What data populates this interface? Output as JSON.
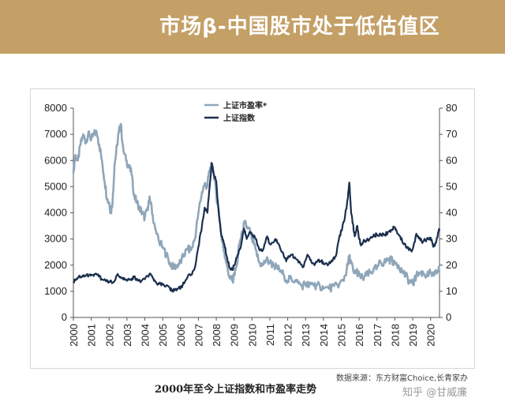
{
  "header": {
    "title": "市场β-中国股市处于低估值区",
    "band_color": "#c4a067"
  },
  "caption": "2000年至今上证指数和市盈率走势",
  "source": "数据来源：东方财富Choice,长青家办",
  "watermark": "知乎 @甘威廉",
  "chart_data": {
    "type": "line",
    "title": "",
    "x_ticks": [
      "2000",
      "2001",
      "2002",
      "2003",
      "2004",
      "2005",
      "2006",
      "2007",
      "2008",
      "2009",
      "2010",
      "2011",
      "2012",
      "2013",
      "2014",
      "2015",
      "2016",
      "2017",
      "2018",
      "2019",
      "2020"
    ],
    "xlim": [
      2000,
      2020.5
    ],
    "y_left": {
      "ticks": [
        0,
        1000,
        2000,
        3000,
        4000,
        5000,
        6000,
        7000,
        8000
      ],
      "lim": [
        0,
        8000
      ]
    },
    "y_right": {
      "ticks": [
        0,
        10,
        20,
        30,
        40,
        50,
        60,
        70,
        80
      ],
      "lim": [
        0,
        80
      ]
    },
    "legend_position": "top-left",
    "grid": false,
    "series": [
      {
        "name": "上证市盈率*",
        "axis": "right",
        "color": "#8fa6b9",
        "points": [
          [
            2000.0,
            55
          ],
          [
            2000.1,
            62
          ],
          [
            2000.25,
            60
          ],
          [
            2000.4,
            66
          ],
          [
            2000.55,
            70
          ],
          [
            2000.7,
            67
          ],
          [
            2000.85,
            71
          ],
          [
            2001.0,
            68
          ],
          [
            2001.15,
            70
          ],
          [
            2001.3,
            71
          ],
          [
            2001.45,
            66
          ],
          [
            2001.6,
            60
          ],
          [
            2001.75,
            52
          ],
          [
            2001.9,
            45
          ],
          [
            2002.0,
            44
          ],
          [
            2002.1,
            40
          ],
          [
            2002.2,
            45
          ],
          [
            2002.3,
            58
          ],
          [
            2002.45,
            66
          ],
          [
            2002.55,
            71
          ],
          [
            2002.65,
            74
          ],
          [
            2002.8,
            64
          ],
          [
            2002.95,
            60
          ],
          [
            2003.1,
            58
          ],
          [
            2003.25,
            55
          ],
          [
            2003.4,
            47
          ],
          [
            2003.55,
            44
          ],
          [
            2003.7,
            42
          ],
          [
            2003.85,
            40
          ],
          [
            2004.0,
            38
          ],
          [
            2004.15,
            42
          ],
          [
            2004.25,
            45
          ],
          [
            2004.35,
            44
          ],
          [
            2004.5,
            36
          ],
          [
            2004.65,
            32
          ],
          [
            2004.8,
            29
          ],
          [
            2005.0,
            27
          ],
          [
            2005.2,
            24
          ],
          [
            2005.4,
            21
          ],
          [
            2005.6,
            19
          ],
          [
            2005.8,
            20
          ],
          [
            2006.0,
            21
          ],
          [
            2006.2,
            24
          ],
          [
            2006.4,
            26
          ],
          [
            2006.6,
            26
          ],
          [
            2006.8,
            30
          ],
          [
            2007.0,
            40
          ],
          [
            2007.2,
            48
          ],
          [
            2007.35,
            51
          ],
          [
            2007.5,
            50
          ],
          [
            2007.6,
            56
          ],
          [
            2007.75,
            58
          ],
          [
            2007.85,
            56
          ],
          [
            2008.0,
            47
          ],
          [
            2008.15,
            40
          ],
          [
            2008.3,
            30
          ],
          [
            2008.45,
            25
          ],
          [
            2008.6,
            20
          ],
          [
            2008.75,
            15
          ],
          [
            2008.9,
            14
          ],
          [
            2009.0,
            16
          ],
          [
            2009.15,
            20
          ],
          [
            2009.3,
            28
          ],
          [
            2009.45,
            33
          ],
          [
            2009.6,
            36
          ],
          [
            2009.75,
            34
          ],
          [
            2009.9,
            33
          ],
          [
            2010.0,
            30
          ],
          [
            2010.2,
            26
          ],
          [
            2010.4,
            21
          ],
          [
            2010.6,
            20
          ],
          [
            2010.8,
            22
          ],
          [
            2011.0,
            21
          ],
          [
            2011.2,
            20
          ],
          [
            2011.4,
            19
          ],
          [
            2011.6,
            18
          ],
          [
            2011.8,
            16
          ],
          [
            2012.0,
            14
          ],
          [
            2012.2,
            15
          ],
          [
            2012.4,
            14
          ],
          [
            2012.6,
            13
          ],
          [
            2012.8,
            12
          ],
          [
            2013.0,
            13
          ],
          [
            2013.2,
            12
          ],
          [
            2013.4,
            13
          ],
          [
            2013.6,
            12
          ],
          [
            2013.8,
            12
          ],
          [
            2014.0,
            11
          ],
          [
            2014.3,
            11
          ],
          [
            2014.6,
            12
          ],
          [
            2014.9,
            13
          ],
          [
            2015.1,
            14
          ],
          [
            2015.3,
            18
          ],
          [
            2015.45,
            23
          ],
          [
            2015.55,
            21
          ],
          [
            2015.7,
            17
          ],
          [
            2015.85,
            18
          ],
          [
            2016.0,
            16
          ],
          [
            2016.2,
            15
          ],
          [
            2016.4,
            16
          ],
          [
            2016.6,
            17
          ],
          [
            2016.8,
            18
          ],
          [
            2017.0,
            19
          ],
          [
            2017.2,
            21
          ],
          [
            2017.4,
            21
          ],
          [
            2017.6,
            22
          ],
          [
            2017.8,
            22
          ],
          [
            2018.0,
            21
          ],
          [
            2018.2,
            20
          ],
          [
            2018.4,
            18
          ],
          [
            2018.6,
            16
          ],
          [
            2018.8,
            14
          ],
          [
            2019.0,
            13
          ],
          [
            2019.1,
            14
          ],
          [
            2019.2,
            16
          ],
          [
            2019.4,
            17
          ],
          [
            2019.6,
            17
          ],
          [
            2019.8,
            16
          ],
          [
            2020.0,
            17
          ],
          [
            2020.2,
            16
          ],
          [
            2020.4,
            18
          ],
          [
            2020.5,
            18
          ]
        ]
      },
      {
        "name": "上证指数",
        "axis": "left",
        "color": "#1b2f4e",
        "points": [
          [
            2000.0,
            1370
          ],
          [
            2000.1,
            1450
          ],
          [
            2000.3,
            1550
          ],
          [
            2000.5,
            1590
          ],
          [
            2000.7,
            1600
          ],
          [
            2000.9,
            1640
          ],
          [
            2001.1,
            1620
          ],
          [
            2001.3,
            1650
          ],
          [
            2001.45,
            1560
          ],
          [
            2001.6,
            1450
          ],
          [
            2001.8,
            1420
          ],
          [
            2002.0,
            1370
          ],
          [
            2002.2,
            1330
          ],
          [
            2002.45,
            1620
          ],
          [
            2002.6,
            1530
          ],
          [
            2002.8,
            1450
          ],
          [
            2003.0,
            1400
          ],
          [
            2003.2,
            1460
          ],
          [
            2003.4,
            1530
          ],
          [
            2003.6,
            1420
          ],
          [
            2003.8,
            1380
          ],
          [
            2004.0,
            1460
          ],
          [
            2004.25,
            1650
          ],
          [
            2004.45,
            1500
          ],
          [
            2004.6,
            1380
          ],
          [
            2004.8,
            1280
          ],
          [
            2005.0,
            1260
          ],
          [
            2005.2,
            1220
          ],
          [
            2005.4,
            1120
          ],
          [
            2005.5,
            1010
          ],
          [
            2005.7,
            1080
          ],
          [
            2005.9,
            1130
          ],
          [
            2006.0,
            1160
          ],
          [
            2006.2,
            1300
          ],
          [
            2006.4,
            1560
          ],
          [
            2006.6,
            1640
          ],
          [
            2006.8,
            1900
          ],
          [
            2007.0,
            2700
          ],
          [
            2007.2,
            3500
          ],
          [
            2007.35,
            4200
          ],
          [
            2007.5,
            4000
          ],
          [
            2007.6,
            4800
          ],
          [
            2007.75,
            5900
          ],
          [
            2007.85,
            5500
          ],
          [
            2008.0,
            5200
          ],
          [
            2008.15,
            3900
          ],
          [
            2008.3,
            3100
          ],
          [
            2008.45,
            2800
          ],
          [
            2008.6,
            2300
          ],
          [
            2008.75,
            1900
          ],
          [
            2008.9,
            1820
          ],
          [
            2009.0,
            1990
          ],
          [
            2009.2,
            2400
          ],
          [
            2009.4,
            2800
          ],
          [
            2009.55,
            3400
          ],
          [
            2009.7,
            3000
          ],
          [
            2009.9,
            3270
          ],
          [
            2010.0,
            3200
          ],
          [
            2010.2,
            3000
          ],
          [
            2010.4,
            2600
          ],
          [
            2010.6,
            2550
          ],
          [
            2010.85,
            3100
          ],
          [
            2011.0,
            2800
          ],
          [
            2011.3,
            3000
          ],
          [
            2011.5,
            2800
          ],
          [
            2011.7,
            2500
          ],
          [
            2011.9,
            2200
          ],
          [
            2012.0,
            2250
          ],
          [
            2012.2,
            2400
          ],
          [
            2012.4,
            2300
          ],
          [
            2012.6,
            2100
          ],
          [
            2012.9,
            1950
          ],
          [
            2013.1,
            2400
          ],
          [
            2013.3,
            2200
          ],
          [
            2013.5,
            2000
          ],
          [
            2013.7,
            2200
          ],
          [
            2013.9,
            2150
          ],
          [
            2014.0,
            2050
          ],
          [
            2014.3,
            2050
          ],
          [
            2014.5,
            2150
          ],
          [
            2014.7,
            2350
          ],
          [
            2014.9,
            3100
          ],
          [
            2015.0,
            3300
          ],
          [
            2015.2,
            3800
          ],
          [
            2015.35,
            4500
          ],
          [
            2015.45,
            5160
          ],
          [
            2015.55,
            4000
          ],
          [
            2015.65,
            3600
          ],
          [
            2015.75,
            3100
          ],
          [
            2015.9,
            3500
          ],
          [
            2016.0,
            3000
          ],
          [
            2016.1,
            2750
          ],
          [
            2016.3,
            2950
          ],
          [
            2016.5,
            2950
          ],
          [
            2016.7,
            3050
          ],
          [
            2016.9,
            3150
          ],
          [
            2017.0,
            3150
          ],
          [
            2017.2,
            3200
          ],
          [
            2017.4,
            3150
          ],
          [
            2017.6,
            3250
          ],
          [
            2017.8,
            3350
          ],
          [
            2018.0,
            3450
          ],
          [
            2018.1,
            3300
          ],
          [
            2018.3,
            3100
          ],
          [
            2018.5,
            2800
          ],
          [
            2018.7,
            2700
          ],
          [
            2018.9,
            2550
          ],
          [
            2019.0,
            2600
          ],
          [
            2019.2,
            3200
          ],
          [
            2019.3,
            3100
          ],
          [
            2019.5,
            2900
          ],
          [
            2019.7,
            2950
          ],
          [
            2019.9,
            3000
          ],
          [
            2020.0,
            3050
          ],
          [
            2020.15,
            2700
          ],
          [
            2020.3,
            2850
          ],
          [
            2020.45,
            3300
          ],
          [
            2020.5,
            3350
          ]
        ]
      }
    ]
  }
}
